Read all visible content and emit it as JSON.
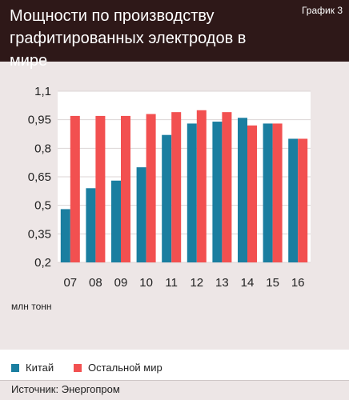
{
  "header": {
    "title_line1": "Мощности по производству",
    "title_line2": "графитированных электродов в мире",
    "graph_number": "График 3"
  },
  "unit_label": "млн тонн",
  "source": "Источник: Энергопром",
  "colors": {
    "china": "#1a7ea0",
    "rest": "#f25050",
    "header_bg": "#2e1818",
    "panel_bg": "#ede6e6"
  },
  "chart_data": {
    "type": "bar",
    "categories": [
      "07",
      "08",
      "09",
      "10",
      "11",
      "12",
      "13",
      "14",
      "15",
      "16"
    ],
    "series": [
      {
        "name": "Китай",
        "values": [
          0.48,
          0.59,
          0.63,
          0.7,
          0.87,
          0.93,
          0.94,
          0.96,
          0.93,
          0.85
        ]
      },
      {
        "name": "Остальной мир",
        "values": [
          0.97,
          0.97,
          0.97,
          0.98,
          0.99,
          1.0,
          0.99,
          0.92,
          0.93,
          0.85
        ]
      }
    ],
    "y_ticks": [
      "1,1",
      "0,95",
      "0,8",
      "0,65",
      "0,5",
      "0,35",
      "0,2"
    ],
    "y_tick_values": [
      1.1,
      0.95,
      0.8,
      0.65,
      0.5,
      0.35,
      0.2
    ],
    "ylim": [
      0.2,
      1.1
    ],
    "grid": true,
    "legend_position": "bottom"
  }
}
